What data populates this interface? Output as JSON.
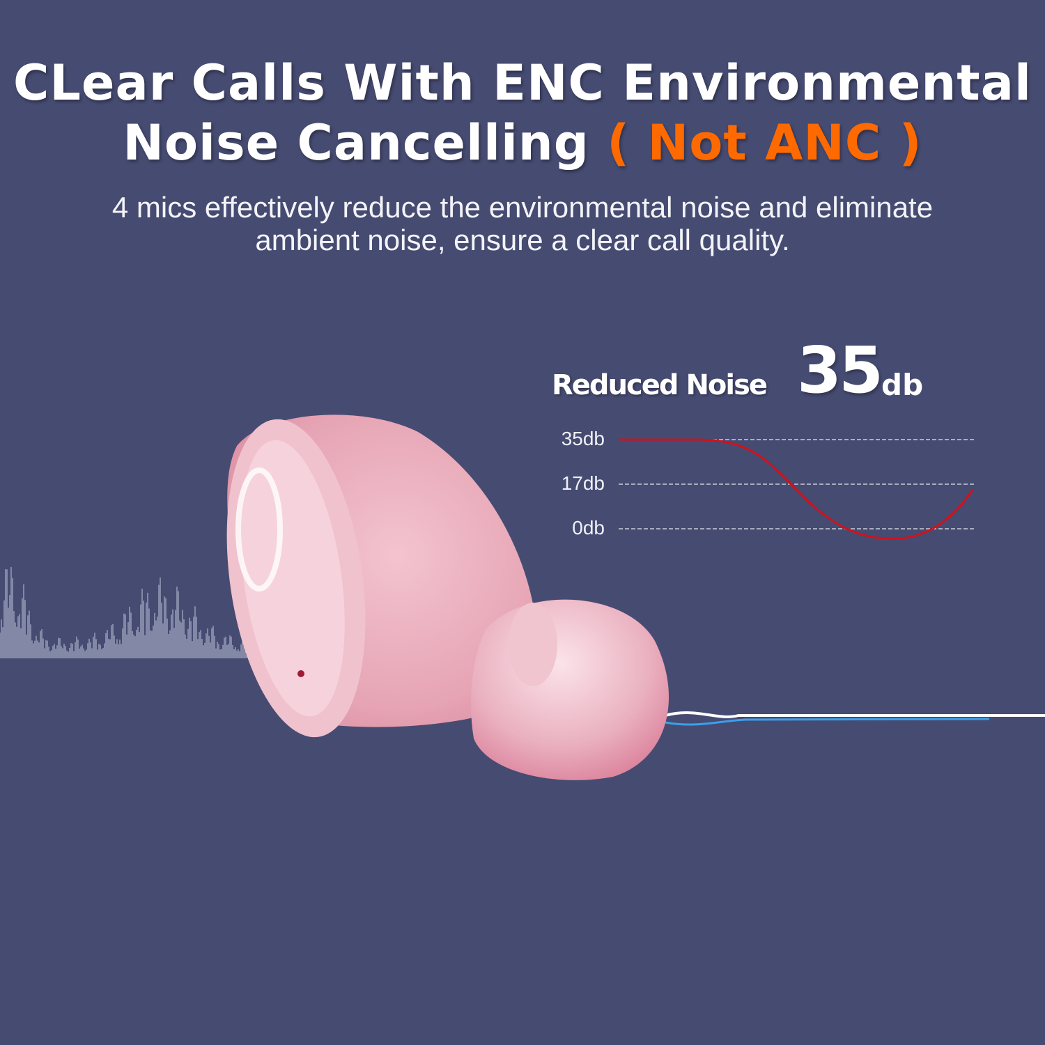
{
  "headline": {
    "line1": "CLear Calls With ENC Environmental",
    "line2_main": "Noise Cancelling",
    "line2_accent": "( Not ANC )",
    "accent_color": "#ff6a00"
  },
  "subtitle": {
    "line1": "4 mics effectively reduce the environmental noise and eliminate",
    "line2": "ambient noise, ensure a clear call quality."
  },
  "stat": {
    "label": "Reduced Noise",
    "value": "35",
    "unit": "db"
  },
  "graph": {
    "ticks": [
      "35db",
      "17db",
      "0db"
    ],
    "curve_color": "#d0121b"
  },
  "colors": {
    "background": "#464b72",
    "earbud": "#e9a6b5"
  }
}
